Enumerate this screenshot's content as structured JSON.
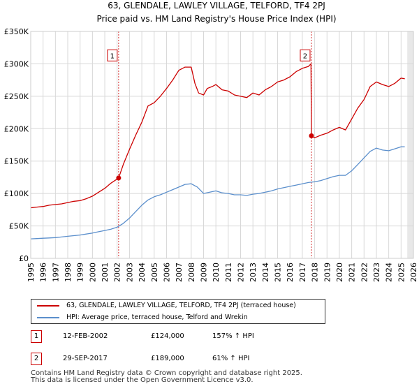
{
  "chart_data": {
    "type": "line",
    "title": "63, GLENDALE, LAWLEY VILLAGE, TELFORD, TF4 2PJ",
    "subtitle": "Price paid vs. HM Land Registry's House Price Index (HPI)",
    "xlim": [
      1995,
      2026
    ],
    "ylim": [
      0,
      350000
    ],
    "x_ticks": [
      1995,
      1996,
      1997,
      1998,
      1999,
      2000,
      2001,
      2002,
      2003,
      2004,
      2005,
      2006,
      2007,
      2008,
      2009,
      2010,
      2011,
      2012,
      2013,
      2014,
      2015,
      2016,
      2017,
      2018,
      2019,
      2020,
      2021,
      2022,
      2023,
      2024,
      2025,
      2026
    ],
    "y_ticks": [
      {
        "value": 0,
        "label": "£0"
      },
      {
        "value": 50000,
        "label": "£50K"
      },
      {
        "value": 100000,
        "label": "£100K"
      },
      {
        "value": 150000,
        "label": "£150K"
      },
      {
        "value": 200000,
        "label": "£200K"
      },
      {
        "value": 250000,
        "label": "£250K"
      },
      {
        "value": 300000,
        "label": "£300K"
      },
      {
        "value": 350000,
        "label": "£350K"
      }
    ],
    "shade_after": 2025.5,
    "series": [
      {
        "name": "63, GLENDALE, LAWLEY VILLAGE, TELFORD, TF4 2PJ (terraced house)",
        "color": "#cc0000",
        "x": [
          1995.0,
          1995.5,
          1996.0,
          1996.5,
          1997.0,
          1997.5,
          1998.0,
          1998.5,
          1999.0,
          1999.5,
          2000.0,
          2000.5,
          2001.0,
          2001.5,
          2002.12,
          2002.5,
          2003.0,
          2003.5,
          2004.0,
          2004.5,
          2005.0,
          2005.5,
          2006.0,
          2006.5,
          2007.0,
          2007.5,
          2008.0,
          2008.3,
          2008.6,
          2009.0,
          2009.3,
          2009.7,
          2010.0,
          2010.5,
          2011.0,
          2011.5,
          2012.0,
          2012.5,
          2013.0,
          2013.5,
          2014.0,
          2014.5,
          2015.0,
          2015.5,
          2016.0,
          2016.5,
          2017.0,
          2017.5,
          2017.7,
          2017.74,
          2018.0,
          2018.5,
          2019.0,
          2019.5,
          2020.0,
          2020.5,
          2021.0,
          2021.5,
          2022.0,
          2022.5,
          2023.0,
          2023.5,
          2024.0,
          2024.5,
          2025.0,
          2025.3
        ],
        "y": [
          78000,
          79000,
          80000,
          82000,
          83000,
          84000,
          86000,
          88000,
          89000,
          92000,
          96000,
          102000,
          108000,
          116000,
          124000,
          145000,
          168000,
          190000,
          210000,
          235000,
          240000,
          250000,
          262000,
          275000,
          290000,
          295000,
          295000,
          270000,
          255000,
          252000,
          262000,
          265000,
          268000,
          260000,
          258000,
          252000,
          250000,
          248000,
          255000,
          252000,
          260000,
          265000,
          272000,
          275000,
          280000,
          288000,
          293000,
          296000,
          300000,
          189000,
          186000,
          190000,
          193000,
          198000,
          202000,
          198000,
          215000,
          232000,
          245000,
          265000,
          272000,
          268000,
          265000,
          270000,
          278000,
          277000
        ]
      },
      {
        "name": "HPI: Average price, terraced house, Telford and Wrekin",
        "color": "#5b8fcc",
        "x": [
          1995.0,
          1995.5,
          1996.0,
          1996.5,
          1997.0,
          1997.5,
          1998.0,
          1998.5,
          1999.0,
          1999.5,
          2000.0,
          2000.5,
          2001.0,
          2001.5,
          2002.0,
          2002.5,
          2003.0,
          2003.5,
          2004.0,
          2004.5,
          2005.0,
          2005.5,
          2006.0,
          2006.5,
          2007.0,
          2007.5,
          2008.0,
          2008.5,
          2009.0,
          2009.5,
          2010.0,
          2010.5,
          2011.0,
          2011.5,
          2012.0,
          2012.5,
          2013.0,
          2013.5,
          2014.0,
          2014.5,
          2015.0,
          2015.5,
          2016.0,
          2016.5,
          2017.0,
          2017.5,
          2018.0,
          2018.5,
          2019.0,
          2019.5,
          2020.0,
          2020.5,
          2021.0,
          2021.5,
          2022.0,
          2022.5,
          2023.0,
          2023.5,
          2024.0,
          2024.5,
          2025.0,
          2025.3
        ],
        "y": [
          30000,
          30500,
          31000,
          31500,
          32000,
          33000,
          34000,
          35000,
          36000,
          37500,
          39000,
          41000,
          43000,
          45000,
          48000,
          54000,
          62000,
          72000,
          82000,
          90000,
          95000,
          98000,
          102000,
          106000,
          110000,
          114000,
          115000,
          110000,
          100000,
          102000,
          104000,
          101000,
          100000,
          98000,
          98000,
          97000,
          99000,
          100000,
          102000,
          104000,
          107000,
          109000,
          111000,
          113000,
          115000,
          117000,
          118000,
          120000,
          123000,
          126000,
          128000,
          128000,
          135000,
          145000,
          155000,
          165000,
          170000,
          167000,
          166000,
          169000,
          172000,
          172000
        ]
      }
    ],
    "annotations": [
      {
        "label": "1",
        "x": 2002.12,
        "y": 124000,
        "box_y": 313000
      },
      {
        "label": "2",
        "x": 2017.74,
        "y": 189000,
        "box_y": 313000
      }
    ]
  },
  "legend": {
    "entry1": "63, GLENDALE, LAWLEY VILLAGE, TELFORD, TF4 2PJ (terraced house)",
    "entry2": "HPI: Average price, terraced house, Telford and Wrekin"
  },
  "transactions": [
    {
      "num": "1",
      "date": "12-FEB-2002",
      "price": "£124,000",
      "hpi": "157% ↑ HPI"
    },
    {
      "num": "2",
      "date": "29-SEP-2017",
      "price": "£189,000",
      "hpi": "61% ↑ HPI"
    }
  ],
  "footer": {
    "line1": "Contains HM Land Registry data © Crown copyright and database right 2025.",
    "line2": "This data is licensed under the Open Government Licence v3.0."
  }
}
